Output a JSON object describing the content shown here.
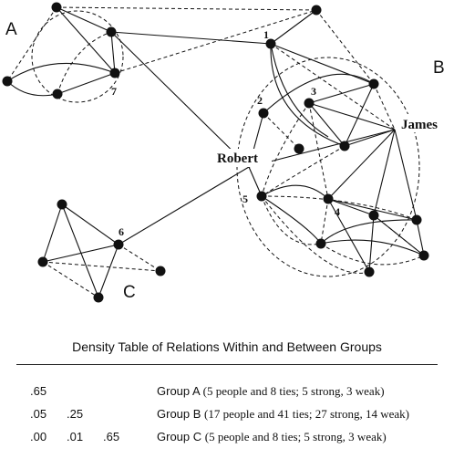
{
  "groups": {
    "a": "A",
    "b": "B",
    "c": "C"
  },
  "people": {
    "robert": "Robert",
    "james": "James"
  },
  "node_labels": {
    "n1": "1",
    "n2": "2",
    "n3": "3",
    "n4": "4",
    "n5": "5",
    "n6": "6",
    "n7": "7"
  },
  "table": {
    "title": "Density Table of Relations Within and Between Groups",
    "rows": [
      {
        "values": [
          ".65"
        ],
        "group": "Group A",
        "detail": "(5 people and 8 ties; 5 strong, 3 weak)"
      },
      {
        "values": [
          ".05",
          ".25"
        ],
        "group": "Group B",
        "detail": "(17 people and 41 ties; 27 strong, 14 weak)"
      },
      {
        "values": [
          ".00",
          ".01",
          ".65"
        ],
        "group": "Group C",
        "detail": "(5 people and 8 ties; 5 strong, 3 weak)"
      }
    ]
  }
}
